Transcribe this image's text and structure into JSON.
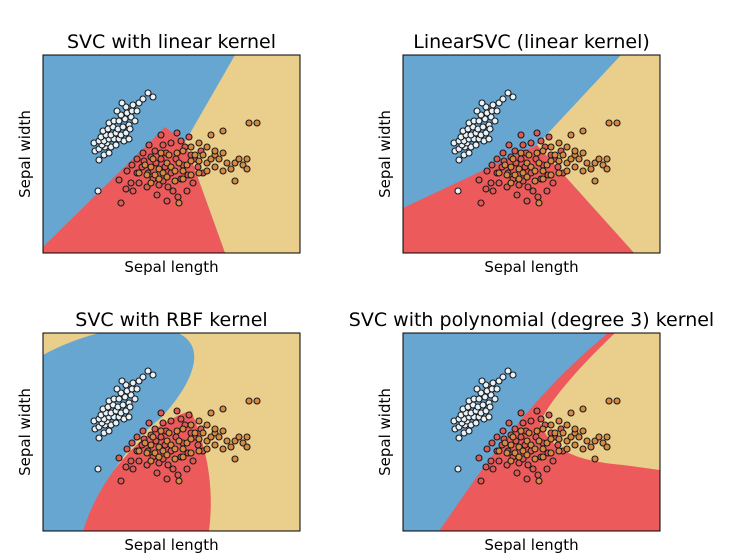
{
  "colors": {
    "class0": "#67a6d0",
    "class1": "#ec5a5c",
    "class2": "#e9ce8c",
    "frame": "#000000"
  },
  "chart_data": [
    {
      "type": "scatter",
      "title": "SVC with linear kernel",
      "xlabel": "Sepal length",
      "ylabel": "Sepal width",
      "grid": false,
      "legend": "none",
      "xticks": [],
      "yticks": []
    },
    {
      "type": "scatter",
      "title": "LinearSVC (linear kernel)",
      "xlabel": "Sepal length",
      "ylabel": "Sepal width",
      "grid": false,
      "legend": "none",
      "xticks": [],
      "yticks": []
    },
    {
      "type": "scatter",
      "title": "SVC with RBF kernel",
      "xlabel": "Sepal length",
      "ylabel": "Sepal width",
      "grid": false,
      "legend": "none",
      "xticks": [],
      "yticks": []
    },
    {
      "type": "scatter",
      "title": "SVC with polynomial (degree 3) kernel",
      "xlabel": "Sepal length",
      "ylabel": "Sepal width",
      "grid": false,
      "legend": "none",
      "xticks": [],
      "yticks": []
    }
  ]
}
